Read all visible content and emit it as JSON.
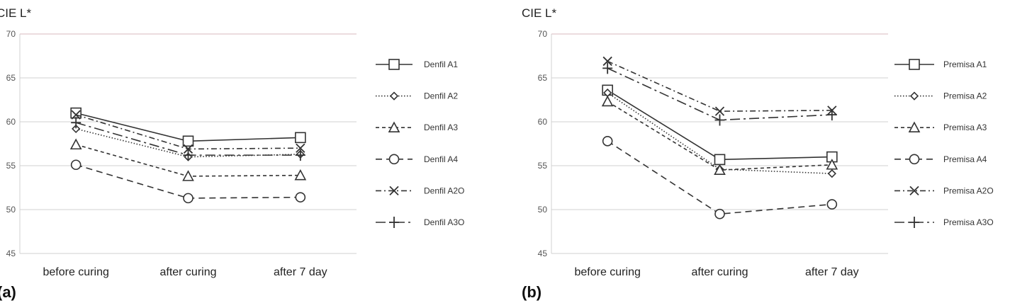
{
  "chart_data": [
    {
      "type": "line",
      "panel_label": "(a)",
      "ylabel": "CIE L*",
      "categories": [
        "before curing",
        "after curing",
        "after 7 day"
      ],
      "ylim": [
        45,
        70
      ],
      "yticks": [
        45,
        50,
        55,
        60,
        65,
        70
      ],
      "grid": true,
      "legend": "right",
      "series": [
        {
          "name": "Denfil A1",
          "marker": "square",
          "dash": "solid",
          "values": [
            61.0,
            57.8,
            58.2
          ]
        },
        {
          "name": "Denfil A2",
          "marker": "diamond",
          "dash": "dotted",
          "values": [
            59.2,
            56.0,
            56.3
          ]
        },
        {
          "name": "Denfil A3",
          "marker": "triangle",
          "dash": "dashed",
          "values": [
            57.4,
            53.8,
            53.9
          ]
        },
        {
          "name": "Denfil A4",
          "marker": "circle",
          "dash": "longdash",
          "values": [
            55.1,
            51.3,
            51.4
          ]
        },
        {
          "name": "Denfil A2O",
          "marker": "x",
          "dash": "dashdot",
          "values": [
            60.8,
            56.9,
            57.0
          ]
        },
        {
          "name": "Denfil A3O",
          "marker": "plus",
          "dash": "longdashdot",
          "values": [
            59.9,
            56.2,
            56.2
          ]
        }
      ]
    },
    {
      "type": "line",
      "panel_label": "(b)",
      "ylabel": "CIE L*",
      "categories": [
        "before curing",
        "after curing",
        "after 7 day"
      ],
      "ylim": [
        45,
        70
      ],
      "yticks": [
        45,
        50,
        55,
        60,
        65,
        70
      ],
      "grid": true,
      "legend": "right",
      "series": [
        {
          "name": "Premisa A1",
          "marker": "square",
          "dash": "solid",
          "values": [
            63.6,
            55.7,
            56.0
          ]
        },
        {
          "name": "Premisa A2",
          "marker": "diamond",
          "dash": "dotted",
          "values": [
            63.3,
            54.6,
            54.1
          ]
        },
        {
          "name": "Premisa A3",
          "marker": "triangle",
          "dash": "dashed",
          "values": [
            62.3,
            54.5,
            55.1
          ]
        },
        {
          "name": "Premisa A4",
          "marker": "circle",
          "dash": "longdash",
          "values": [
            57.8,
            49.5,
            50.6
          ]
        },
        {
          "name": "Premisa A2O",
          "marker": "x",
          "dash": "dashdot",
          "values": [
            66.9,
            61.2,
            61.3
          ]
        },
        {
          "name": "Premisa A3O",
          "marker": "plus",
          "dash": "longdashdot",
          "values": [
            66.1,
            60.2,
            60.8
          ]
        }
      ]
    }
  ]
}
